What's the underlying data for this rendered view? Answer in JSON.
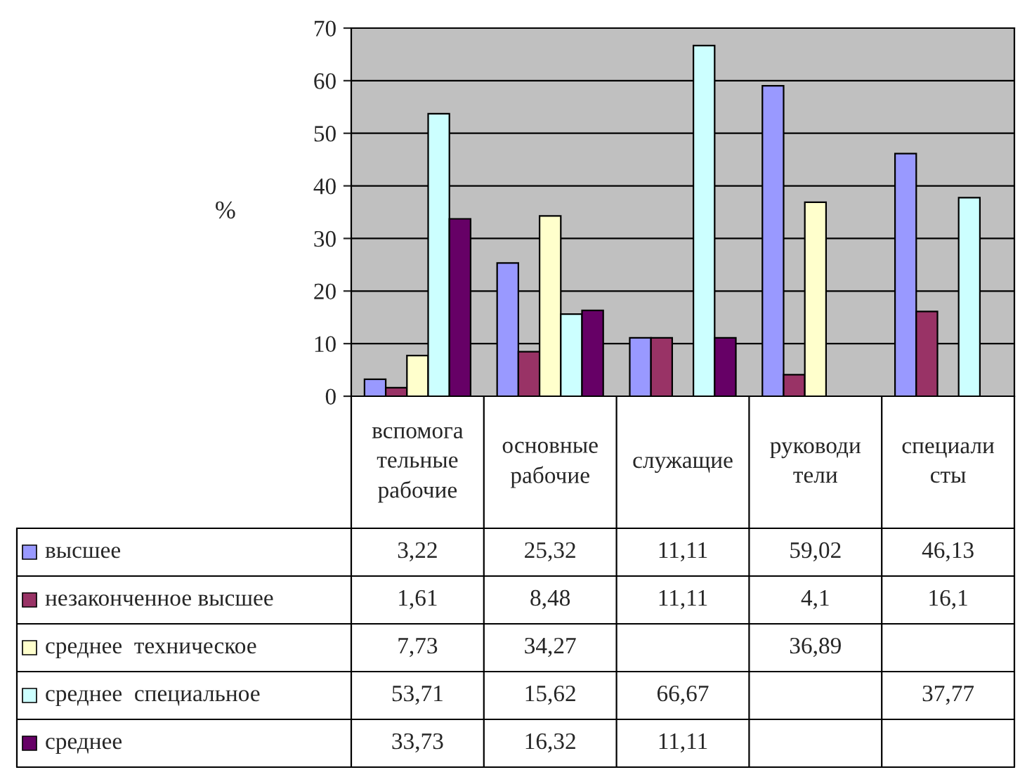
{
  "chart_data": {
    "type": "bar",
    "ylabel": "%",
    "categories": [
      "вспомога\nтельные\nрабочие",
      "основные\nрабочие",
      "служащие",
      "руководи\nтели",
      "специали\nсты"
    ],
    "series": [
      {
        "name": "высшее",
        "color": "#9999ff",
        "values": [
          3.22,
          25.32,
          11.11,
          59.02,
          46.13
        ],
        "value_labels": [
          "3,22",
          "25,32",
          "11,11",
          "59,02",
          "46,13"
        ]
      },
      {
        "name": "незаконченное высшее",
        "color": "#993366",
        "values": [
          1.61,
          8.48,
          11.11,
          4.1,
          16.1
        ],
        "value_labels": [
          "1,61",
          "8,48",
          "11,11",
          "4,1",
          "16,1"
        ]
      },
      {
        "name": "среднее  техническое",
        "color": "#ffffcc",
        "values": [
          7.73,
          34.27,
          null,
          36.89,
          null
        ],
        "value_labels": [
          "7,73",
          "34,27",
          null,
          "36,89",
          null
        ]
      },
      {
        "name": "среднее  специальное",
        "color": "#ccffff",
        "values": [
          53.71,
          15.62,
          66.67,
          null,
          37.77
        ],
        "value_labels": [
          "53,71",
          "15,62",
          "66,67",
          null,
          "37,77"
        ]
      },
      {
        "name": "среднее",
        "color": "#660066",
        "values": [
          33.73,
          16.32,
          11.11,
          null,
          null
        ],
        "value_labels": [
          "33,73",
          "16,32",
          "11,11",
          null,
          null
        ]
      }
    ],
    "ylim": [
      0,
      70
    ],
    "yticks": [
      0,
      10,
      20,
      30,
      40,
      50,
      60,
      70
    ],
    "grid": "y",
    "legend": "bottom"
  }
}
